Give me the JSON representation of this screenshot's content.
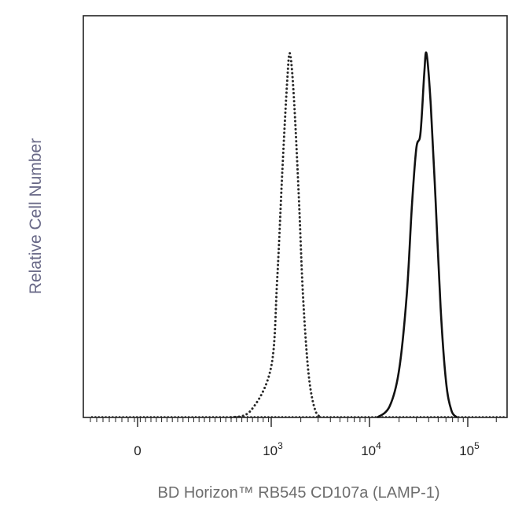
{
  "chart_data": {
    "type": "line",
    "title": "",
    "xlabel": "BD Horizon™ RB545 CD107a (LAMP-1)",
    "ylabel": "Relative Cell Number",
    "x_scale": "biexponential",
    "xlim": [
      -300,
      260000
    ],
    "ylim": [
      0,
      100
    ],
    "x_tick_labels": [
      {
        "value": 0,
        "label": "0",
        "exp": ""
      },
      {
        "value": 1000,
        "label": "10",
        "exp": "3"
      },
      {
        "value": 10000,
        "label": "10",
        "exp": "4"
      },
      {
        "value": 100000,
        "label": "10",
        "exp": "5"
      }
    ],
    "grid": false,
    "legend": "none",
    "series": [
      {
        "style": "dotted",
        "color": "#2a2a2a",
        "x": [
          700,
          850,
          1000,
          1150,
          1300,
          1450,
          1550,
          1700,
          1900,
          2100,
          2400,
          2800,
          3300
        ],
        "y": [
          0,
          2,
          14,
          38,
          68,
          92,
          100,
          88,
          62,
          34,
          12,
          2,
          0
        ]
      },
      {
        "style": "solid",
        "color": "#111111",
        "x": [
          12000,
          16000,
          20000,
          24000,
          27000,
          30000,
          33000,
          36000,
          38000,
          42000,
          47000,
          53000,
          60000,
          68000,
          78000
        ],
        "y": [
          0,
          3,
          13,
          34,
          58,
          74,
          78,
          94,
          100,
          86,
          60,
          30,
          10,
          2,
          0
        ]
      }
    ]
  }
}
